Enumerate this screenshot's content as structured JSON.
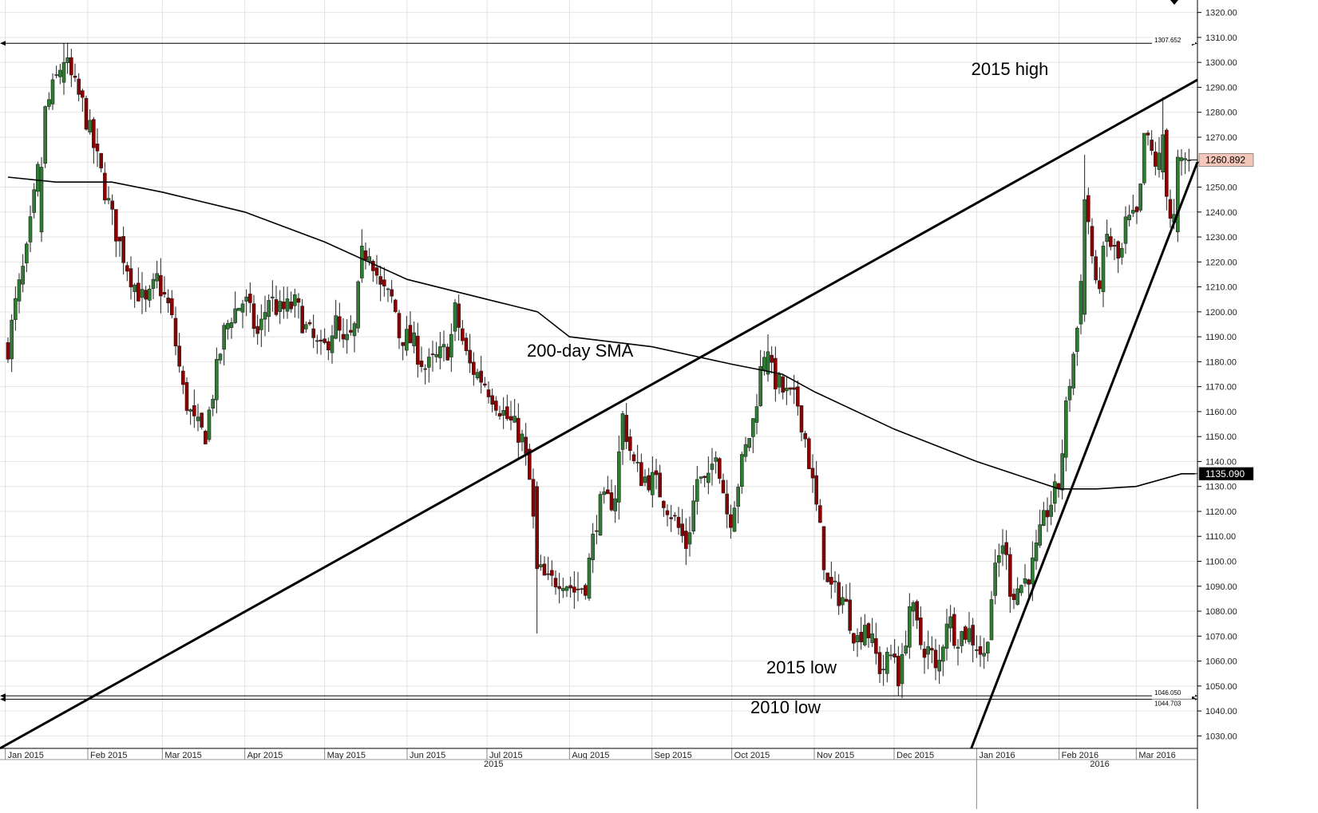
{
  "chart_data": {
    "type": "candlestick",
    "title": "",
    "xlabel": "",
    "ylabel": "",
    "ylim": [
      1025,
      1325
    ],
    "y_ticks": [
      1030,
      1040,
      1050,
      1060,
      1070,
      1080,
      1090,
      1100,
      1110,
      1120,
      1130,
      1140,
      1150,
      1160,
      1170,
      1180,
      1190,
      1200,
      1210,
      1220,
      1230,
      1240,
      1250,
      1260,
      1270,
      1280,
      1290,
      1300,
      1310,
      1320
    ],
    "y_tick_labels": [
      "1030.00",
      "1040.00",
      "1050.00",
      "1060.00",
      "1070.00",
      "1080.00",
      "1090.00",
      "1100.00",
      "1110.00",
      "1120.00",
      "1130.00",
      "1140.00",
      "1150.00",
      "1160.00",
      "1170.00",
      "1180.00",
      "1190.00",
      "1200.00",
      "1210.00",
      "1220.00",
      "1230.00",
      "1240.00",
      "1250.00",
      "1260.00",
      "1270.00",
      "1280.00",
      "1290.00",
      "1300.00",
      "1310.00",
      "1320.00"
    ],
    "x_month_labels": [
      "Jan 2015",
      "Feb 2015",
      "Mar 2015",
      "Apr 2015",
      "May 2015",
      "Jun 2015",
      "Jul 2015",
      "Aug 2015",
      "Sep 2015",
      "Oct 2015",
      "Nov 2015",
      "Dec 2015",
      "Jan 2016",
      "Feb 2016",
      "Mar 2016"
    ],
    "x_year_labels": [
      "2015",
      "2016"
    ],
    "price_points": [
      {
        "date": "2015-01-02",
        "price": 1186
      },
      {
        "date": "2015-01-05",
        "price": 1204
      },
      {
        "date": "2015-01-09",
        "price": 1223
      },
      {
        "date": "2015-01-14",
        "price": 1262
      },
      {
        "date": "2015-01-16",
        "price": 1280
      },
      {
        "date": "2015-01-21",
        "price": 1296
      },
      {
        "date": "2015-01-23",
        "price": 1302
      },
      {
        "date": "2015-01-27",
        "price": 1290
      },
      {
        "date": "2015-01-30",
        "price": 1283
      },
      {
        "date": "2015-02-03",
        "price": 1267
      },
      {
        "date": "2015-02-06",
        "price": 1255
      },
      {
        "date": "2015-02-10",
        "price": 1238
      },
      {
        "date": "2015-02-13",
        "price": 1227
      },
      {
        "date": "2015-02-18",
        "price": 1212
      },
      {
        "date": "2015-02-23",
        "price": 1202
      },
      {
        "date": "2015-02-27",
        "price": 1213
      },
      {
        "date": "2015-03-04",
        "price": 1200
      },
      {
        "date": "2015-03-09",
        "price": 1167
      },
      {
        "date": "2015-03-13",
        "price": 1155
      },
      {
        "date": "2015-03-17",
        "price": 1150
      },
      {
        "date": "2015-03-20",
        "price": 1168
      },
      {
        "date": "2015-03-24",
        "price": 1191
      },
      {
        "date": "2015-03-27",
        "price": 1199
      },
      {
        "date": "2015-04-01",
        "price": 1205
      },
      {
        "date": "2015-04-06",
        "price": 1190
      },
      {
        "date": "2015-04-10",
        "price": 1206
      },
      {
        "date": "2015-04-14",
        "price": 1200
      },
      {
        "date": "2015-04-20",
        "price": 1203
      },
      {
        "date": "2015-04-24",
        "price": 1193
      },
      {
        "date": "2015-04-30",
        "price": 1183
      },
      {
        "date": "2015-05-05",
        "price": 1196
      },
      {
        "date": "2015-05-08",
        "price": 1186
      },
      {
        "date": "2015-05-12",
        "price": 1191
      },
      {
        "date": "2015-05-15",
        "price": 1222
      },
      {
        "date": "2015-05-18",
        "price": 1226
      },
      {
        "date": "2015-05-22",
        "price": 1209
      },
      {
        "date": "2015-05-27",
        "price": 1204
      },
      {
        "date": "2015-05-29",
        "price": 1191
      },
      {
        "date": "2015-06-03",
        "price": 1188
      },
      {
        "date": "2015-06-08",
        "price": 1177
      },
      {
        "date": "2015-06-12",
        "price": 1181
      },
      {
        "date": "2015-06-17",
        "price": 1186
      },
      {
        "date": "2015-06-19",
        "price": 1200
      },
      {
        "date": "2015-06-24",
        "price": 1179
      },
      {
        "date": "2015-06-30",
        "price": 1172
      },
      {
        "date": "2015-07-03",
        "price": 1167
      },
      {
        "date": "2015-07-08",
        "price": 1158
      },
      {
        "date": "2015-07-14",
        "price": 1150
      },
      {
        "date": "2015-07-17",
        "price": 1132
      },
      {
        "date": "2015-07-20",
        "price": 1097
      },
      {
        "date": "2015-07-24",
        "price": 1091
      },
      {
        "date": "2015-07-29",
        "price": 1094
      },
      {
        "date": "2015-08-03",
        "price": 1088
      },
      {
        "date": "2015-08-07",
        "price": 1091
      },
      {
        "date": "2015-08-12",
        "price": 1122
      },
      {
        "date": "2015-08-18",
        "price": 1125
      },
      {
        "date": "2015-08-21",
        "price": 1158
      },
      {
        "date": "2015-08-25",
        "price": 1139
      },
      {
        "date": "2015-08-28",
        "price": 1134
      },
      {
        "date": "2015-09-02",
        "price": 1132
      },
      {
        "date": "2015-09-08",
        "price": 1120
      },
      {
        "date": "2015-09-14",
        "price": 1106
      },
      {
        "date": "2015-09-18",
        "price": 1133
      },
      {
        "date": "2015-09-22",
        "price": 1130
      },
      {
        "date": "2015-09-25",
        "price": 1146
      },
      {
        "date": "2015-09-30",
        "price": 1115
      },
      {
        "date": "2015-10-05",
        "price": 1140
      },
      {
        "date": "2015-10-09",
        "price": 1156
      },
      {
        "date": "2015-10-13",
        "price": 1185
      },
      {
        "date": "2015-10-16",
        "price": 1175
      },
      {
        "date": "2015-10-21",
        "price": 1167
      },
      {
        "date": "2015-10-26",
        "price": 1163
      },
      {
        "date": "2015-10-29",
        "price": 1147
      },
      {
        "date": "2015-11-03",
        "price": 1113
      },
      {
        "date": "2015-11-06",
        "price": 1090
      },
      {
        "date": "2015-11-12",
        "price": 1085
      },
      {
        "date": "2015-11-17",
        "price": 1068
      },
      {
        "date": "2015-11-20",
        "price": 1076
      },
      {
        "date": "2015-11-26",
        "price": 1056
      },
      {
        "date": "2015-12-01",
        "price": 1064
      },
      {
        "date": "2015-12-03",
        "price": 1050
      },
      {
        "date": "2015-12-07",
        "price": 1084
      },
      {
        "date": "2015-12-11",
        "price": 1067
      },
      {
        "date": "2015-12-15",
        "price": 1063
      },
      {
        "date": "2015-12-17",
        "price": 1053
      },
      {
        "date": "2015-12-21",
        "price": 1079
      },
      {
        "date": "2015-12-24",
        "price": 1070
      },
      {
        "date": "2015-12-29",
        "price": 1072
      },
      {
        "date": "2016-01-04",
        "price": 1061
      },
      {
        "date": "2016-01-07",
        "price": 1090
      },
      {
        "date": "2016-01-11",
        "price": 1109
      },
      {
        "date": "2016-01-14",
        "price": 1087
      },
      {
        "date": "2016-01-19",
        "price": 1092
      },
      {
        "date": "2016-01-22",
        "price": 1098
      },
      {
        "date": "2016-01-27",
        "price": 1119
      },
      {
        "date": "2016-02-01",
        "price": 1131
      },
      {
        "date": "2016-02-04",
        "price": 1165
      },
      {
        "date": "2016-02-08",
        "price": 1195
      },
      {
        "date": "2016-02-11",
        "price": 1247
      },
      {
        "date": "2016-02-15",
        "price": 1206
      },
      {
        "date": "2016-02-19",
        "price": 1230
      },
      {
        "date": "2016-02-24",
        "price": 1219
      },
      {
        "date": "2016-02-26",
        "price": 1235
      },
      {
        "date": "2016-03-02",
        "price": 1238
      },
      {
        "date": "2016-03-04",
        "price": 1271
      },
      {
        "date": "2016-03-08",
        "price": 1260
      },
      {
        "date": "2016-03-11",
        "price": 1261
      },
      {
        "date": "2016-03-14",
        "price": 1237
      },
      {
        "date": "2016-03-16",
        "price": 1237
      },
      {
        "date": "2016-03-18",
        "price": 1258
      },
      {
        "date": "2016-03-21",
        "price": 1260.892
      }
    ],
    "candles": [
      {
        "date": "2015-01-15",
        "low": 1228,
        "high": 1262,
        "open": 1232,
        "close": 1258
      },
      {
        "date": "2015-01-23",
        "low": 1287,
        "high": 1307.652,
        "open": 1292,
        "close": 1300
      },
      {
        "date": "2015-07-20",
        "low": 1071,
        "high": 1132,
        "open": 1130,
        "close": 1097
      },
      {
        "date": "2015-10-14",
        "low": 1172,
        "high": 1191,
        "open": 1175,
        "close": 1184
      },
      {
        "date": "2015-12-03",
        "low": 1046.05,
        "high": 1066,
        "open": 1062,
        "close": 1050
      },
      {
        "date": "2016-02-11",
        "low": 1196,
        "high": 1263,
        "open": 1199,
        "close": 1245
      },
      {
        "date": "2016-03-11",
        "low": 1253,
        "high": 1286,
        "open": 1256,
        "close": 1271
      },
      {
        "date": "2016-03-17",
        "low": 1228,
        "high": 1265,
        "open": 1232,
        "close": 1262
      }
    ],
    "series": [
      {
        "name": "200-day SMA",
        "points": [
          {
            "date": "2015-01-02",
            "value": 1254
          },
          {
            "date": "2015-01-20",
            "value": 1252
          },
          {
            "date": "2015-02-10",
            "value": 1252
          },
          {
            "date": "2015-03-01",
            "value": 1248
          },
          {
            "date": "2015-04-01",
            "value": 1240
          },
          {
            "date": "2015-05-01",
            "value": 1228
          },
          {
            "date": "2015-06-01",
            "value": 1213
          },
          {
            "date": "2015-07-01",
            "value": 1205
          },
          {
            "date": "2015-07-20",
            "value": 1200
          },
          {
            "date": "2015-08-01",
            "value": 1190
          },
          {
            "date": "2015-09-01",
            "value": 1186
          },
          {
            "date": "2015-10-01",
            "value": 1179
          },
          {
            "date": "2015-10-20",
            "value": 1175
          },
          {
            "date": "2015-11-01",
            "value": 1168
          },
          {
            "date": "2015-12-01",
            "value": 1153
          },
          {
            "date": "2016-01-01",
            "value": 1140
          },
          {
            "date": "2016-02-01",
            "value": 1129
          },
          {
            "date": "2016-02-15",
            "value": 1129
          },
          {
            "date": "2016-03-01",
            "value": 1130
          },
          {
            "date": "2016-03-18",
            "value": 1135.09
          },
          {
            "date": "2016-03-23",
            "value": 1135.09
          }
        ]
      }
    ],
    "trendlines": [
      {
        "kind": "resistance",
        "from": {
          "date": "2014-12-30",
          "value": 1025
        },
        "to": {
          "date": "2016-03-24",
          "value": 1293
        }
      },
      {
        "kind": "support",
        "from": {
          "date": "2015-12-30",
          "value": 1025
        },
        "to": {
          "date": "2016-03-24",
          "value": 1260
        }
      }
    ],
    "horizontal_levels": [
      {
        "name": "2015 high",
        "value": 1307.652,
        "label": "1307.652"
      },
      {
        "name": "2015 low",
        "value": 1046.05,
        "label": "1046.050"
      },
      {
        "name": "2010 low",
        "value": 1044.703,
        "label": "1044.703"
      }
    ],
    "price_markers": [
      {
        "name": "last price",
        "label": "1260.892",
        "value": 1260.892,
        "color": "#f5c7ba"
      },
      {
        "name": "200-day SMA",
        "label": "1135.090",
        "value": 1135.09,
        "color": "#000000"
      }
    ],
    "annotations": [
      "2015 high",
      "200-day SMA",
      "2015 low",
      "2010 low"
    ],
    "colors": {
      "up": "#2e7d32",
      "down": "#8b0000",
      "grid": "#e2e2e2",
      "line": "#000000"
    },
    "legend": "none",
    "grid": true
  }
}
